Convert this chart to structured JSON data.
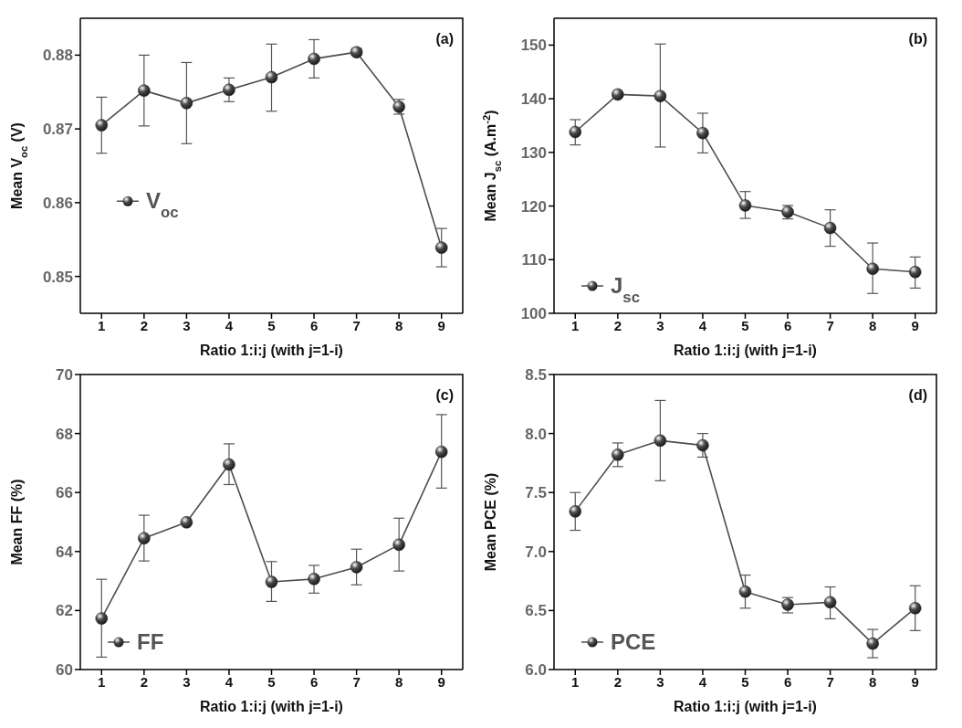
{
  "chart_data": [
    {
      "type": "line",
      "xlabel": "Ratio 1:i:j  (with j=1-i)",
      "ylabel": "Mean V$_{oc}$  (V)",
      "x": [
        1,
        2,
        3,
        4,
        5,
        6,
        7,
        8,
        9
      ],
      "xlim": [
        0.5,
        9.5
      ],
      "xticks": [
        1,
        2,
        3,
        4,
        5,
        6,
        7,
        8,
        9
      ],
      "ylim": [
        0.845,
        0.885
      ],
      "yticks": [
        0.85,
        0.86,
        0.87,
        0.88
      ],
      "marker": "circle",
      "legend": "left",
      "annotations": [
        "(a)"
      ],
      "series": [
        {
          "name": "V$_{oc}$",
          "color": "#4d4d4d",
          "values": [
            0.8705,
            0.8752,
            0.8735,
            0.8753,
            0.877,
            0.8795,
            0.8804,
            0.873,
            0.8539
          ],
          "errors": [
            [
              0.8667,
              0.8743
            ],
            [
              0.8704,
              0.88
            ],
            [
              0.868,
              0.879
            ],
            [
              0.8737,
              0.8769
            ],
            [
              0.8724,
              0.8815
            ],
            [
              0.8769,
              0.8821
            ],
            [
              0.88,
              0.8809
            ],
            [
              0.872,
              0.874
            ],
            [
              0.8513,
              0.8565
            ]
          ]
        }
      ]
    },
    {
      "type": "line",
      "xlabel": "Ratio 1:i:j  (with j=1-i)",
      "ylabel": "Mean J$_{sc}$  (A.m$^{-2}$)",
      "x": [
        1,
        2,
        3,
        4,
        5,
        6,
        7,
        8,
        9
      ],
      "xlim": [
        0.5,
        9.5
      ],
      "xticks": [
        1,
        2,
        3,
        4,
        5,
        6,
        7,
        8,
        9
      ],
      "ylim": [
        100,
        155
      ],
      "yticks": [
        100,
        110,
        120,
        130,
        140,
        150
      ],
      "marker": "circle",
      "legend": "bottom left",
      "annotations": [
        "(b)"
      ],
      "series": [
        {
          "name": "J$_{sc}$",
          "color": "#4d4d4d",
          "values": [
            133.8,
            140.8,
            140.5,
            133.6,
            120.1,
            118.9,
            115.9,
            108.3,
            107.7
          ],
          "errors": [
            [
              131.4,
              136.1
            ],
            null,
            [
              131.0,
              150.2
            ],
            [
              129.9,
              137.3
            ],
            [
              117.7,
              122.7
            ],
            [
              117.6,
              120.1
            ],
            [
              112.5,
              119.3
            ],
            [
              103.7,
              113.1
            ],
            [
              104.7,
              110.5
            ]
          ]
        }
      ]
    },
    {
      "type": "line",
      "xlabel": "Ratio 1:i:j  (with j=1-i)",
      "ylabel": "Mean FF (%)",
      "x": [
        1,
        2,
        3,
        4,
        5,
        6,
        7,
        8,
        9
      ],
      "xlim": [
        0.5,
        9.5
      ],
      "xticks": [
        1,
        2,
        3,
        4,
        5,
        6,
        7,
        8,
        9
      ],
      "ylim": [
        60,
        70
      ],
      "yticks": [
        60,
        62,
        64,
        66,
        68,
        70
      ],
      "marker": "circle",
      "legend": "bottom left",
      "annotations": [
        "(c)"
      ],
      "series": [
        {
          "name": "FF",
          "color": "#4d4d4d",
          "values": [
            61.73,
            64.45,
            64.99,
            66.95,
            62.97,
            63.07,
            63.47,
            64.23,
            67.38
          ],
          "errors": [
            [
              60.42,
              63.06
            ],
            [
              63.68,
              65.23
            ],
            null,
            [
              66.27,
              67.65
            ],
            [
              62.31,
              63.66
            ],
            [
              62.59,
              63.53
            ],
            [
              62.87,
              64.08
            ],
            [
              63.34,
              65.13
            ],
            [
              66.15,
              68.64
            ]
          ]
        }
      ]
    },
    {
      "type": "line",
      "xlabel": "Ratio 1:i:j  (with j=1-i)",
      "ylabel": "Mean PCE (%)",
      "x": [
        1,
        2,
        3,
        4,
        5,
        6,
        7,
        8,
        9
      ],
      "xlim": [
        0.5,
        9.5
      ],
      "xticks": [
        1,
        2,
        3,
        4,
        5,
        6,
        7,
        8,
        9
      ],
      "ylim": [
        6.0,
        8.5
      ],
      "yticks": [
        {
          "value": 6,
          "label": "6.0"
        },
        6.5,
        {
          "value": 7,
          "label": "7.0"
        },
        7.5,
        {
          "value": 8,
          "label": "8.0"
        },
        8.5
      ],
      "marker": "circle",
      "legend": "bottom left",
      "annotations": [
        "(d)"
      ],
      "series": [
        {
          "name": "PCE",
          "color": "#4d4d4d",
          "values": [
            7.34,
            7.82,
            7.94,
            7.9,
            6.66,
            6.55,
            6.57,
            6.22,
            6.52
          ],
          "errors": [
            [
              7.18,
              7.5
            ],
            [
              7.72,
              7.92
            ],
            [
              7.6,
              8.28
            ],
            [
              7.8,
              8.0
            ],
            [
              6.52,
              6.8
            ],
            [
              6.48,
              6.61
            ],
            [
              6.43,
              6.7
            ],
            [
              6.1,
              6.34
            ],
            [
              6.33,
              6.71
            ]
          ]
        }
      ]
    }
  ]
}
